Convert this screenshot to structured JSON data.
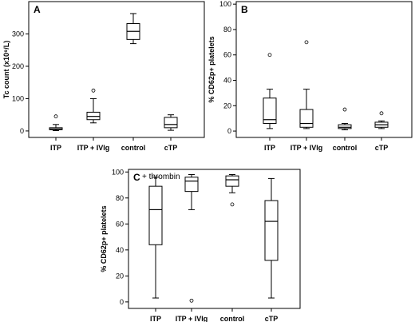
{
  "chart_data": [
    {
      "type": "box",
      "panel_label": "A",
      "ylabel": "Tc count (x10⁹/L)",
      "ylim": [
        -20,
        400
      ],
      "yticks": [
        0,
        100,
        200,
        300
      ],
      "categories": [
        "ITP",
        "ITP + IVIg",
        "control",
        "cTP"
      ],
      "boxes": [
        {
          "whisker_low": 1,
          "q1": 4,
          "median": 6,
          "q3": 10,
          "whisker_high": 20,
          "outliers": [
            45
          ]
        },
        {
          "whisker_low": 25,
          "q1": 35,
          "median": 45,
          "q3": 58,
          "whisker_high": 100,
          "outliers": [
            125
          ]
        },
        {
          "whisker_low": 270,
          "q1": 283,
          "median": 308,
          "q3": 332,
          "whisker_high": 363,
          "outliers": []
        },
        {
          "whisker_low": 2,
          "q1": 10,
          "median": 20,
          "q3": 42,
          "whisker_high": 50,
          "outliers": []
        }
      ]
    },
    {
      "type": "box",
      "panel_label": "B",
      "ylabel": "% CD62p+ platelets",
      "ylim": [
        -5,
        102
      ],
      "yticks": [
        0,
        20,
        40,
        60,
        80,
        100
      ],
      "categories": [
        "ITP",
        "ITP + IVIg",
        "control",
        "cTP"
      ],
      "boxes": [
        {
          "whisker_low": 2,
          "q1": 6,
          "median": 9,
          "q3": 26,
          "whisker_high": 33,
          "outliers": [
            60
          ]
        },
        {
          "whisker_low": 2,
          "q1": 3,
          "median": 6,
          "q3": 17,
          "whisker_high": 33,
          "outliers": [
            70
          ]
        },
        {
          "whisker_low": 1,
          "q1": 2,
          "median": 3,
          "q3": 5,
          "whisker_high": 6,
          "outliers": [
            17
          ]
        },
        {
          "whisker_low": 2,
          "q1": 3,
          "median": 5,
          "q3": 7,
          "whisker_high": 8,
          "outliers": [
            14
          ]
        }
      ]
    },
    {
      "type": "box",
      "panel_label": "C",
      "annotation": "+ thrombin",
      "ylabel": "% CD62p+ platelets",
      "ylim": [
        -5,
        102
      ],
      "yticks": [
        0,
        20,
        40,
        60,
        80,
        100
      ],
      "categories": [
        "ITP",
        "ITP + IVIg",
        "control",
        "cTP"
      ],
      "boxes": [
        {
          "whisker_low": 3,
          "q1": 44,
          "median": 71,
          "q3": 89,
          "whisker_high": 96,
          "outliers": []
        },
        {
          "whisker_low": 71,
          "q1": 85,
          "median": 93,
          "q3": 96,
          "whisker_high": 98,
          "outliers": [
            1
          ]
        },
        {
          "whisker_low": 84,
          "q1": 89,
          "median": 94,
          "q3": 97,
          "whisker_high": 98,
          "outliers": [
            75
          ]
        },
        {
          "whisker_low": 3,
          "q1": 32,
          "median": 62,
          "q3": 78,
          "whisker_high": 95,
          "outliers": []
        }
      ]
    }
  ]
}
